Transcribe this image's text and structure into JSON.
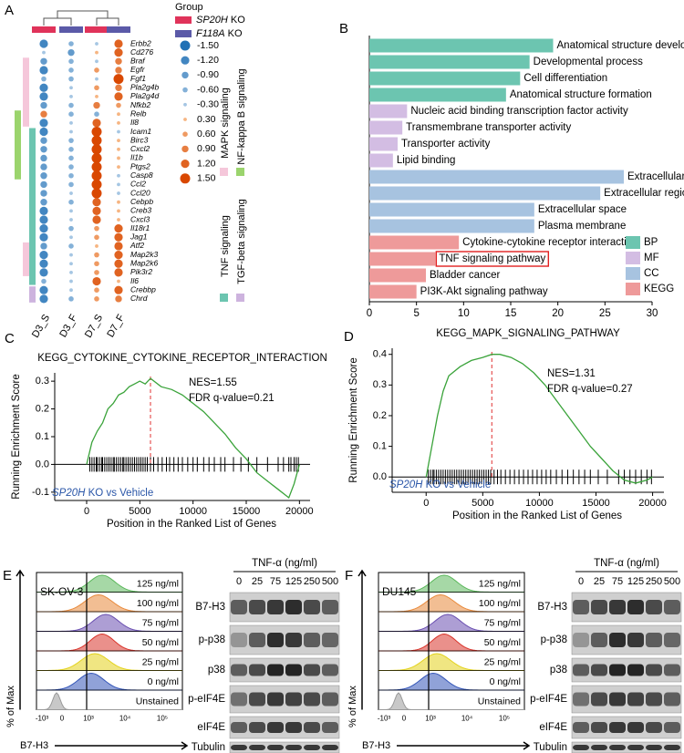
{
  "panel_labels": [
    "A",
    "B",
    "C",
    "D",
    "E",
    "F"
  ],
  "chart_data": [
    {
      "type": "dotplot",
      "group_title": "Group",
      "groups": [
        {
          "name": "SP20H",
          "suffix": " KO",
          "color": "#e0335a"
        },
        {
          "name": "F118A",
          "suffix": " KO",
          "color": "#5b5aa8"
        }
      ],
      "columns": [
        "D3_S",
        "D3_F",
        "D7_S",
        "D7_F"
      ],
      "rows": [
        {
          "gene": "Erbb2",
          "values": [
            -1.2,
            -0.6,
            -0.3,
            1.2
          ]
        },
        {
          "gene": "Cd276",
          "color": "#d62728",
          "values": [
            -0.3,
            -0.9,
            0.3,
            1.2
          ]
        },
        {
          "gene": "Braf",
          "values": [
            -0.9,
            -0.6,
            -0.3,
            0.9
          ]
        },
        {
          "gene": "Egfr",
          "values": [
            -1.2,
            -0.6,
            0.6,
            0.9
          ]
        },
        {
          "gene": "Fgf1",
          "values": [
            -0.6,
            -0.6,
            -0.3,
            1.5
          ]
        },
        {
          "gene": "Pla2g4b",
          "values": [
            -1.2,
            -0.3,
            0.6,
            0.9
          ]
        },
        {
          "gene": "Pla2g4d",
          "values": [
            -1.2,
            -0.3,
            0.3,
            1.2
          ]
        },
        {
          "gene": "Nfkb2",
          "values": [
            -0.9,
            -0.6,
            0.9,
            0.6
          ]
        },
        {
          "gene": "Relb",
          "values": [
            0.9,
            -0.6,
            -0.6,
            0.3
          ]
        },
        {
          "gene": "Il8",
          "values": [
            -1.2,
            -0.3,
            1.2,
            0.3
          ]
        },
        {
          "gene": "Icam1",
          "values": [
            -1.2,
            -0.3,
            1.5,
            -0.3
          ]
        },
        {
          "gene": "Birc3",
          "values": [
            -0.9,
            -0.6,
            1.5,
            0.3
          ]
        },
        {
          "gene": "Cxcl2",
          "values": [
            -0.9,
            -0.6,
            1.5,
            0.3
          ]
        },
        {
          "gene": "Il1b",
          "values": [
            -0.9,
            -0.6,
            1.5,
            0.3
          ]
        },
        {
          "gene": "Ptgs2",
          "values": [
            -0.9,
            -0.6,
            1.5,
            0.3
          ]
        },
        {
          "gene": "Casp8",
          "values": [
            -0.9,
            -0.6,
            1.5,
            -0.3
          ]
        },
        {
          "gene": "Ccl2",
          "values": [
            -0.9,
            -0.6,
            1.5,
            -0.3
          ]
        },
        {
          "gene": "Ccl20",
          "values": [
            -0.9,
            -0.3,
            1.5,
            -0.3
          ]
        },
        {
          "gene": "Cebpb",
          "values": [
            -0.9,
            -0.6,
            1.2,
            0.3
          ]
        },
        {
          "gene": "Creb3",
          "values": [
            -1.2,
            -0.3,
            1.2,
            0.3
          ]
        },
        {
          "gene": "Cxcl3",
          "values": [
            -1.2,
            -0.3,
            1.2,
            0.3
          ]
        },
        {
          "gene": "Il18r1",
          "values": [
            -1.2,
            -0.6,
            0.6,
            1.2
          ]
        },
        {
          "gene": "Jag1",
          "values": [
            -1.2,
            -0.3,
            0.6,
            1.2
          ]
        },
        {
          "gene": "Atf2",
          "values": [
            -0.9,
            -0.6,
            0.3,
            1.2
          ]
        },
        {
          "gene": "Map2k3",
          "values": [
            -1.2,
            -0.3,
            0.6,
            1.2
          ]
        },
        {
          "gene": "Map2k6",
          "values": [
            -1.2,
            -0.3,
            0.6,
            1.2
          ]
        },
        {
          "gene": "Pik3r2",
          "values": [
            -1.2,
            -0.3,
            0.6,
            1.2
          ]
        },
        {
          "gene": "Il6",
          "values": [
            -0.6,
            -0.3,
            1.2,
            0.3
          ]
        },
        {
          "gene": "Crebbp",
          "values": [
            -1.2,
            -0.3,
            0.6,
            1.2
          ]
        },
        {
          "gene": "Chrd",
          "values": [
            -1.2,
            -0.6,
            0.6,
            0.9
          ]
        }
      ],
      "color_scale": {
        "negative": "#2171b5",
        "negative_light": "#c6dbef",
        "positive": "#d94801",
        "positive_light": "#fdd0a2"
      },
      "legend_values": [
        {
          "value": -1.5,
          "label": "-1.50"
        },
        {
          "value": -1.2,
          "label": "-1.20"
        },
        {
          "value": -0.9,
          "label": "-0.90"
        },
        {
          "value": -0.6,
          "label": "-0.60"
        },
        {
          "value": -0.3,
          "label": "-0.30"
        },
        {
          "value": 0.3,
          "label": "0.30"
        },
        {
          "value": 0.6,
          "label": "0.60"
        },
        {
          "value": 0.9,
          "label": "0.90"
        },
        {
          "value": 1.2,
          "label": "1.20"
        },
        {
          "value": 1.5,
          "label": "1.50"
        }
      ],
      "pathways": [
        {
          "name": "MAPK signaling",
          "color": "#f5c7da"
        },
        {
          "name": "NF-kappa B signaling",
          "color": "#9bd46d"
        },
        {
          "name": "TNF signaling",
          "color": "#6cc5b0"
        },
        {
          "name": "TGF-beta signaling",
          "color": "#cdb3de"
        }
      ]
    },
    {
      "type": "bar",
      "orientation": "horizontal",
      "categories": [
        "Anatomical structure development",
        "Developmental process",
        "Cell differentiation",
        "Anatomical structure formation",
        "Nucleic acid binding transcription factor activity",
        "Transmembrane transporter activity",
        "Transporter activity",
        "Lipid binding",
        "Extracellular region",
        "Extracellular region part",
        "Extracellular space",
        "Plasma membrane",
        "Cytokine-cytokine receptor interaction",
        "TNF signaling pathway",
        "Bladder cancer",
        "PI3K-Akt signaling pathway"
      ],
      "highlight": "TNF signaling pathway",
      "series": [
        {
          "name": "BP",
          "color": "#6cc5b0",
          "values": [
            19.5,
            17,
            16,
            14.5,
            null,
            null,
            null,
            null,
            null,
            null,
            null,
            null,
            null,
            null,
            null,
            null
          ]
        },
        {
          "name": "MF",
          "color": "#d3bde3",
          "values": [
            null,
            null,
            null,
            null,
            4,
            3.5,
            3,
            2.5,
            null,
            null,
            null,
            null,
            null,
            null,
            null,
            null
          ]
        },
        {
          "name": "CC",
          "color": "#a7c3e0",
          "values": [
            null,
            null,
            null,
            null,
            null,
            null,
            null,
            null,
            27,
            24.5,
            17.5,
            17.5,
            null,
            null,
            null,
            null
          ]
        },
        {
          "name": "KEGG",
          "color": "#ee9a9a",
          "values": [
            null,
            null,
            null,
            null,
            null,
            null,
            null,
            null,
            null,
            null,
            null,
            null,
            9.5,
            7,
            6,
            5
          ]
        }
      ],
      "xlim": [
        0,
        30
      ],
      "xticks": [
        0,
        5,
        10,
        15,
        20,
        25,
        30
      ],
      "legend": "bottom-right"
    },
    {
      "type": "line",
      "title": "KEGG_CYTOKINE_CYTOKINE_RECEPTOR_INTERACTION",
      "y_label": "Running Enrichment Score",
      "x_label": "Position in the Ranked List of Genes",
      "annotations": [
        "NES=1.55",
        "FDR q-value=0.21"
      ],
      "comparison": {
        "gene": "SP20H",
        "text": " KO vs Vehicle"
      },
      "color": "#3aa33a",
      "x": [
        0,
        500,
        1000,
        1500,
        2000,
        2500,
        3000,
        3500,
        4000,
        4500,
        5000,
        5500,
        6000,
        7000,
        8000,
        9000,
        10000,
        11000,
        12000,
        13000,
        14000,
        15000,
        16000,
        17000,
        18000,
        19000,
        19500,
        20000
      ],
      "values": [
        0,
        0.08,
        0.12,
        0.15,
        0.2,
        0.22,
        0.25,
        0.26,
        0.28,
        0.29,
        0.3,
        0.29,
        0.31,
        0.28,
        0.27,
        0.25,
        0.22,
        0.19,
        0.15,
        0.11,
        0.06,
        0.02,
        -0.03,
        -0.06,
        -0.09,
        -0.12,
        -0.07,
        0
      ],
      "peak_x": 6000,
      "hits": [
        300,
        500,
        700,
        900,
        1000,
        1200,
        1400,
        1500,
        1700,
        1900,
        2100,
        2300,
        2500,
        2600,
        2800,
        3000,
        3200,
        3400,
        3500,
        3700,
        3900,
        4100,
        4300,
        4500,
        4700,
        4900,
        5100,
        5300,
        5500,
        5700,
        6000,
        6300,
        6700,
        7100,
        7500,
        7800,
        8200,
        8600,
        9000,
        9500,
        10000,
        10400,
        11000,
        11500,
        12000,
        12600,
        13000,
        13800,
        14500,
        15200,
        16000,
        17000,
        18000,
        18500,
        19000,
        19200,
        19500,
        19700,
        19900
      ],
      "xlim": [
        -3000,
        21000
      ],
      "xticks": [
        0,
        5000,
        10000,
        15000,
        20000
      ],
      "ylim": [
        -0.13,
        0.33
      ],
      "yticks": [
        -0.1,
        {
          "value": 0,
          "label": "0.0"
        },
        0.1,
        0.2,
        0.3
      ]
    },
    {
      "type": "line",
      "title": "KEGG_MAPK_SIGNALING_PATHWAY",
      "y_label": "Running Enrichment Score",
      "x_label": "Position in the Ranked List of Genes",
      "annotations": [
        "NES=1.31",
        "FDR q-value=0.27"
      ],
      "comparison": {
        "gene": "SP20H",
        "text": " KO vs Vehicle"
      },
      "color": "#3aa33a",
      "x": [
        0,
        500,
        1000,
        1500,
        2000,
        3000,
        4000,
        5000,
        5800,
        6500,
        7500,
        8500,
        9500,
        10500,
        11500,
        12500,
        13500,
        14500,
        15500,
        16500,
        17500,
        18500,
        19500,
        20000
      ],
      "values": [
        0,
        0.1,
        0.2,
        0.28,
        0.33,
        0.36,
        0.38,
        0.39,
        0.4,
        0.4,
        0.39,
        0.37,
        0.34,
        0.3,
        0.25,
        0.2,
        0.15,
        0.1,
        0.06,
        0.02,
        -0.01,
        -0.02,
        -0.01,
        0
      ],
      "peak_x": 5800,
      "hits": [
        200,
        400,
        600,
        700,
        900,
        1100,
        1300,
        1500,
        1700,
        1900,
        2100,
        2300,
        2500,
        2700,
        2900,
        3100,
        3300,
        3500,
        3700,
        3900,
        4100,
        4300,
        4500,
        4700,
        4900,
        5100,
        5300,
        5500,
        5700,
        6000,
        6300,
        6600,
        7000,
        7400,
        7800,
        8200,
        8600,
        9000,
        9400,
        9800,
        10200,
        10600,
        11000,
        11500,
        12000,
        12500,
        13000,
        13500,
        14000,
        14500,
        15200,
        16000,
        17000,
        17500,
        18000,
        18500,
        19000,
        19500,
        19900
      ],
      "xlim": [
        -3000,
        21000
      ],
      "xticks": [
        0,
        5000,
        10000,
        15000,
        20000
      ],
      "ylim": [
        -0.05,
        0.42
      ],
      "yticks": [
        {
          "value": 0,
          "label": "0.0"
        },
        0.1,
        0.2,
        0.3,
        0.4
      ]
    }
  ],
  "flow_panels": [
    {
      "cell_line": "SK-OV-3",
      "y_label": "% of Max",
      "x_label": "B7-H3",
      "x_ticks": [
        "-10³",
        "0",
        "10³",
        "10⁴",
        "10⁵"
      ],
      "samples": [
        {
          "label": "125 ng/ml",
          "color": "#5cb85c"
        },
        {
          "label": "100 ng/ml",
          "color": "#e8893a"
        },
        {
          "label": "75 ng/ml",
          "color": "#6a4fb0"
        },
        {
          "label": "50 ng/ml",
          "color": "#d9342b"
        },
        {
          "label": "25 ng/ml",
          "color": "#e3d21c"
        },
        {
          "label": "0 ng/ml",
          "color": "#3456b8"
        },
        {
          "label": "Unstained",
          "color": "#9a9a9a"
        }
      ],
      "blot": {
        "title": "TNF-α (ng/ml)",
        "concentrations": [
          "0",
          "25",
          "75",
          "125",
          "250",
          "500"
        ],
        "proteins": [
          "B7-H3",
          "p-p38",
          "p38",
          "p-eIF4E",
          "eIF4E",
          "Tubulin"
        ]
      }
    },
    {
      "cell_line": "DU145",
      "y_label": "% of Max",
      "x_label": "B7-H3",
      "x_ticks": [
        "-10³",
        "0",
        "10³",
        "10⁴",
        "10⁵"
      ],
      "samples": [
        {
          "label": "125 ng/ml",
          "color": "#5cb85c"
        },
        {
          "label": "100 ng/ml",
          "color": "#e8893a"
        },
        {
          "label": "75 ng/ml",
          "color": "#6a4fb0"
        },
        {
          "label": "50 ng/ml",
          "color": "#d9342b"
        },
        {
          "label": "25 ng/ml",
          "color": "#e3d21c"
        },
        {
          "label": "0 ng/ml",
          "color": "#3456b8"
        },
        {
          "label": "Unstained",
          "color": "#9a9a9a"
        }
      ],
      "blot": {
        "title": "TNF-α (ng/ml)",
        "concentrations": [
          "0",
          "25",
          "75",
          "125",
          "250",
          "500"
        ],
        "proteins": [
          "B7-H3",
          "p-p38",
          "p38",
          "p-eIF4E",
          "eIF4E",
          "Tubulin"
        ]
      }
    }
  ]
}
